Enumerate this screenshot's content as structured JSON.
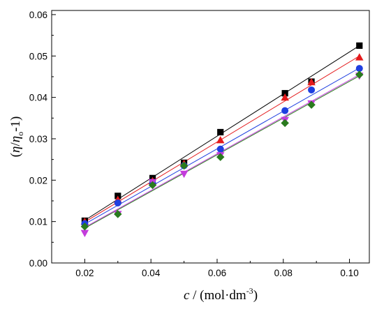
{
  "chart_data": {
    "type": "scatter",
    "xlabel": {
      "italic": "c",
      "text": " / (mol·dm",
      "sup": "-3",
      "close": ")"
    },
    "ylabel": {
      "open": "(",
      "eta": "η",
      "slash": "/",
      "eta0": "η",
      "sub": "o",
      "rest": "-1)"
    },
    "xlim": [
      0.01,
      0.106
    ],
    "ylim": [
      0.0,
      0.061
    ],
    "xticks": [
      0.02,
      0.04,
      0.06,
      0.08,
      0.1
    ],
    "xtick_labels": [
      "0.02",
      "0.04",
      "0.06",
      "0.08",
      "0.10"
    ],
    "yticks": [
      0.0,
      0.01,
      0.02,
      0.03,
      0.04,
      0.05,
      0.06
    ],
    "ytick_labels": [
      "0.00",
      "0.01",
      "0.02",
      "0.03",
      "0.04",
      "0.05",
      "0.06"
    ],
    "x": [
      0.02,
      0.03,
      0.0405,
      0.05,
      0.061,
      0.0805,
      0.0885,
      0.103
    ],
    "series": [
      {
        "color": "#000000",
        "marker": "square",
        "values": [
          0.0102,
          0.0162,
          0.0205,
          0.0242,
          0.0316,
          0.041,
          0.0438,
          0.0525
        ],
        "fit": [
          0.0103,
          0.0525
        ]
      },
      {
        "color": "#e41a1c",
        "marker": "triangle-up",
        "values": [
          0.01,
          0.0153,
          0.0198,
          0.024,
          0.0297,
          0.04,
          0.0437,
          0.0497
        ],
        "fit": [
          0.0099,
          0.05
        ]
      },
      {
        "color": "#1f3fe0",
        "marker": "circle",
        "values": [
          0.0095,
          0.0145,
          0.0192,
          0.0235,
          0.0275,
          0.0368,
          0.0418,
          0.047
        ],
        "fit": [
          0.0094,
          0.0471
        ]
      },
      {
        "color": "#c43cdc",
        "marker": "triangle-down",
        "values": [
          0.0072,
          0.0118,
          0.0195,
          0.0215,
          0.026,
          0.0345,
          0.0385,
          0.0452
        ],
        "fit": [
          0.0086,
          0.0455
        ]
      },
      {
        "color": "#2a7a1e",
        "marker": "diamond",
        "values": [
          0.0088,
          0.0118,
          0.0188,
          0.0235,
          0.0256,
          0.0338,
          0.0382,
          0.0455
        ],
        "fit": [
          0.0084,
          0.0452
        ]
      }
    ]
  }
}
